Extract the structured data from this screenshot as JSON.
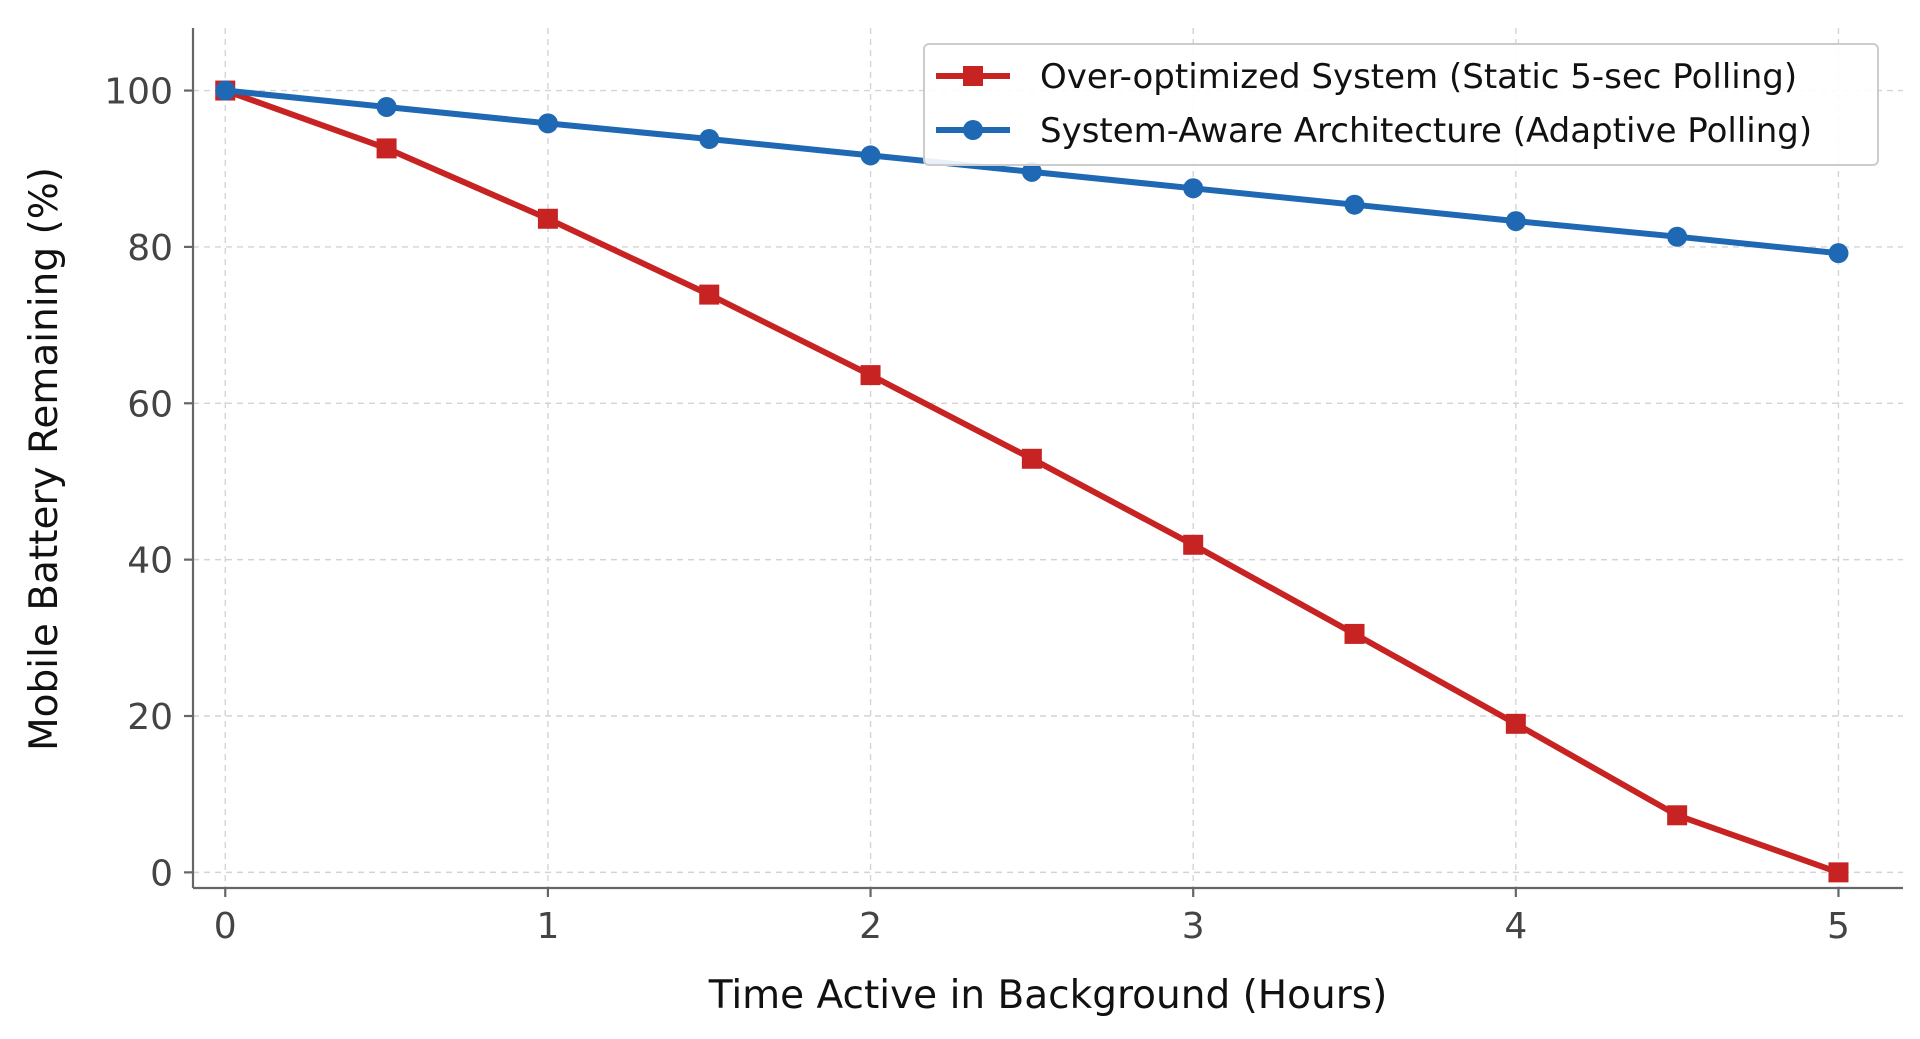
{
  "chart_data": {
    "type": "line",
    "xlabel": "Time Active in Background (Hours)",
    "ylabel": "Mobile Battery Remaining (%)",
    "xlim": [
      -0.1,
      5.2
    ],
    "ylim": [
      -2,
      108
    ],
    "xticks": [
      0,
      1,
      2,
      3,
      4,
      5
    ],
    "yticks": [
      0,
      20,
      40,
      60,
      80,
      100
    ],
    "grid": true,
    "legend_position": "top-right",
    "x": [
      0,
      0.5,
      1,
      1.5,
      2,
      2.5,
      3,
      3.5,
      4,
      4.5,
      5
    ],
    "series": [
      {
        "name": "Over-optimized System (Static 5-sec Polling)",
        "color": "#c82323",
        "marker": "square",
        "values": [
          100,
          92.6,
          83.6,
          73.9,
          63.6,
          52.9,
          41.9,
          30.5,
          19.0,
          7.3,
          0
        ]
      },
      {
        "name": "System-Aware Architecture (Adaptive Polling)",
        "color": "#1f68b3",
        "marker": "circle",
        "values": [
          100,
          97.9,
          95.8,
          93.8,
          91.7,
          89.6,
          87.5,
          85.4,
          83.3,
          81.3,
          79.2
        ]
      }
    ]
  }
}
